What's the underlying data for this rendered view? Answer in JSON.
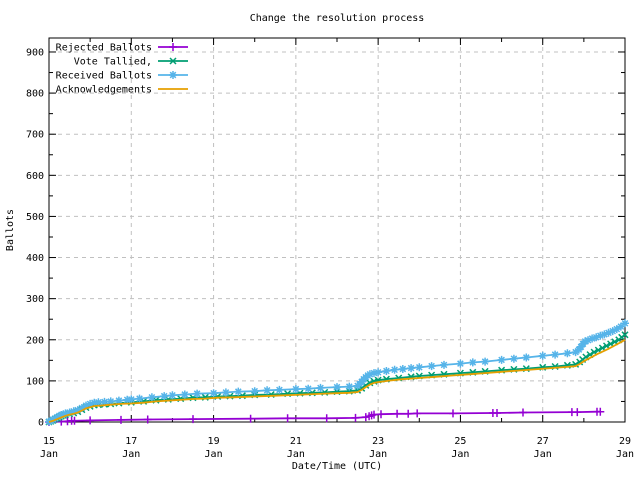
{
  "title": "Change the resolution process",
  "axes": {
    "xlabel": "Date/Time (UTC)",
    "ylabel": "Ballots",
    "x_major_ticks": [
      {
        "day": 15,
        "label_top": "15",
        "label_bottom": "Jan"
      },
      {
        "day": 17,
        "label_top": "17",
        "label_bottom": "Jan"
      },
      {
        "day": 19,
        "label_top": "19",
        "label_bottom": "Jan"
      },
      {
        "day": 21,
        "label_top": "21",
        "label_bottom": "Jan"
      },
      {
        "day": 23,
        "label_top": "23",
        "label_bottom": "Jan"
      },
      {
        "day": 25,
        "label_top": "25",
        "label_bottom": "Jan"
      },
      {
        "day": 27,
        "label_top": "27",
        "label_bottom": "Jan"
      },
      {
        "day": 29,
        "label_top": "29",
        "label_bottom": "Jan"
      }
    ],
    "x_minor_days": [
      16,
      18,
      20,
      22,
      24,
      26,
      28
    ],
    "x_grid_days": [
      17,
      19,
      21,
      23,
      25,
      27
    ],
    "y_major_ticks": [
      0,
      100,
      200,
      300,
      400,
      500,
      600,
      700,
      800,
      900
    ],
    "y_minor_ticks": [
      50,
      150,
      250,
      350,
      450,
      550,
      650,
      750,
      850
    ]
  },
  "colors": {
    "background": "#ffffff",
    "axis": "#000000",
    "grid": "#c0c0c0",
    "rejected": "#9400d3",
    "tallied": "#009e73",
    "received": "#56b4e9",
    "acknowledgements": "#e69f00"
  },
  "chart_data": {
    "type": "line",
    "title": "Change the resolution process",
    "xlabel": "Date/Time (UTC)",
    "ylabel": "Ballots",
    "x_unit": "day of January (UTC)",
    "xlim": [
      15,
      29
    ],
    "ylim": [
      0,
      934
    ],
    "grid": true,
    "legend_position": "top-left",
    "series": [
      {
        "name": "Rejected Ballots",
        "color": "#9400d3",
        "marker": "plus",
        "points": [
          [
            15.0,
            0
          ],
          [
            15.3,
            1
          ],
          [
            15.45,
            2
          ],
          [
            15.55,
            3
          ],
          [
            15.62,
            3
          ],
          [
            16.0,
            4
          ],
          [
            16.75,
            5
          ],
          [
            17.4,
            6
          ],
          [
            18.5,
            7
          ],
          [
            19.9,
            8
          ],
          [
            20.8,
            9
          ],
          [
            21.75,
            9
          ],
          [
            22.45,
            10
          ],
          [
            22.7,
            12
          ],
          [
            22.78,
            14
          ],
          [
            22.84,
            16
          ],
          [
            22.9,
            18
          ],
          [
            23.07,
            19
          ],
          [
            23.46,
            20
          ],
          [
            23.73,
            20
          ],
          [
            23.95,
            21
          ],
          [
            24.82,
            21
          ],
          [
            25.79,
            22
          ],
          [
            25.89,
            22
          ],
          [
            26.52,
            23
          ],
          [
            27.71,
            24
          ],
          [
            27.84,
            24
          ],
          [
            28.32,
            25
          ],
          [
            28.4,
            25
          ]
        ]
      },
      {
        "name": "Vote Tallied,",
        "color": "#009e73",
        "marker": "cross",
        "points": [
          [
            15.0,
            0
          ],
          [
            15.05,
            2
          ],
          [
            15.1,
            4
          ],
          [
            15.15,
            7
          ],
          [
            15.2,
            9
          ],
          [
            15.25,
            12
          ],
          [
            15.3,
            14
          ],
          [
            15.35,
            16
          ],
          [
            15.4,
            18
          ],
          [
            15.5,
            20
          ],
          [
            15.6,
            22
          ],
          [
            15.7,
            25
          ],
          [
            15.8,
            30
          ],
          [
            15.9,
            35
          ],
          [
            16.0,
            38
          ],
          [
            16.1,
            41
          ],
          [
            16.2,
            42
          ],
          [
            16.35,
            43
          ],
          [
            16.5,
            44
          ],
          [
            16.7,
            46
          ],
          [
            17.0,
            48
          ],
          [
            17.3,
            50
          ],
          [
            17.6,
            53
          ],
          [
            17.9,
            55
          ],
          [
            18.2,
            57
          ],
          [
            18.5,
            59
          ],
          [
            18.8,
            60
          ],
          [
            19.1,
            62
          ],
          [
            19.4,
            63
          ],
          [
            19.7,
            64
          ],
          [
            20.0,
            66
          ],
          [
            20.4,
            67
          ],
          [
            20.8,
            69
          ],
          [
            21.1,
            70
          ],
          [
            21.4,
            71
          ],
          [
            21.7,
            72
          ],
          [
            22.0,
            74
          ],
          [
            22.3,
            75
          ],
          [
            22.5,
            77
          ],
          [
            22.6,
            82
          ],
          [
            22.7,
            89
          ],
          [
            22.8,
            95
          ],
          [
            22.9,
            99
          ],
          [
            23.0,
            102
          ],
          [
            23.2,
            104
          ],
          [
            23.5,
            107
          ],
          [
            23.8,
            110
          ],
          [
            24.0,
            112
          ],
          [
            24.3,
            114
          ],
          [
            24.6,
            116
          ],
          [
            25.0,
            119
          ],
          [
            25.3,
            121
          ],
          [
            25.6,
            123
          ],
          [
            26.0,
            126
          ],
          [
            26.3,
            128
          ],
          [
            26.6,
            130
          ],
          [
            27.0,
            133
          ],
          [
            27.3,
            135
          ],
          [
            27.6,
            138
          ],
          [
            27.8,
            140
          ],
          [
            27.9,
            146
          ],
          [
            27.97,
            152
          ],
          [
            28.05,
            158
          ],
          [
            28.15,
            164
          ],
          [
            28.25,
            170
          ],
          [
            28.35,
            175
          ],
          [
            28.45,
            180
          ],
          [
            28.55,
            185
          ],
          [
            28.65,
            190
          ],
          [
            28.75,
            195
          ],
          [
            28.85,
            200
          ],
          [
            28.92,
            206
          ],
          [
            29.0,
            212
          ]
        ]
      },
      {
        "name": "Received Ballots",
        "color": "#56b4e9",
        "marker": "star",
        "points": [
          [
            15.0,
            1
          ],
          [
            15.05,
            3
          ],
          [
            15.1,
            6
          ],
          [
            15.15,
            9
          ],
          [
            15.2,
            12
          ],
          [
            15.25,
            15
          ],
          [
            15.3,
            17
          ],
          [
            15.35,
            19
          ],
          [
            15.4,
            21
          ],
          [
            15.5,
            23
          ],
          [
            15.6,
            26
          ],
          [
            15.7,
            29
          ],
          [
            15.8,
            34
          ],
          [
            15.9,
            40
          ],
          [
            16.0,
            44
          ],
          [
            16.1,
            47
          ],
          [
            16.2,
            48
          ],
          [
            16.35,
            49
          ],
          [
            16.5,
            50
          ],
          [
            16.7,
            52
          ],
          [
            16.9,
            54
          ],
          [
            17.0,
            55
          ],
          [
            17.2,
            57
          ],
          [
            17.5,
            60
          ],
          [
            17.8,
            63
          ],
          [
            18.0,
            65
          ],
          [
            18.3,
            67
          ],
          [
            18.6,
            69
          ],
          [
            19.0,
            70
          ],
          [
            19.3,
            72
          ],
          [
            19.6,
            74
          ],
          [
            20.0,
            75
          ],
          [
            20.3,
            77
          ],
          [
            20.6,
            78
          ],
          [
            21.0,
            80
          ],
          [
            21.3,
            81
          ],
          [
            21.6,
            83
          ],
          [
            22.0,
            85
          ],
          [
            22.3,
            86
          ],
          [
            22.5,
            88
          ],
          [
            22.55,
            92
          ],
          [
            22.6,
            98
          ],
          [
            22.65,
            104
          ],
          [
            22.7,
            109
          ],
          [
            22.75,
            113
          ],
          [
            22.8,
            116
          ],
          [
            22.9,
            119
          ],
          [
            23.0,
            121
          ],
          [
            23.2,
            124
          ],
          [
            23.4,
            127
          ],
          [
            23.6,
            129
          ],
          [
            23.8,
            131
          ],
          [
            24.0,
            133
          ],
          [
            24.3,
            136
          ],
          [
            24.6,
            139
          ],
          [
            25.0,
            142
          ],
          [
            25.3,
            145
          ],
          [
            25.6,
            147
          ],
          [
            26.0,
            151
          ],
          [
            26.3,
            154
          ],
          [
            26.6,
            157
          ],
          [
            27.0,
            161
          ],
          [
            27.3,
            164
          ],
          [
            27.6,
            167
          ],
          [
            27.8,
            170
          ],
          [
            27.88,
            176
          ],
          [
            27.93,
            183
          ],
          [
            27.98,
            190
          ],
          [
            28.03,
            196
          ],
          [
            28.1,
            199
          ],
          [
            28.2,
            203
          ],
          [
            28.3,
            206
          ],
          [
            28.4,
            210
          ],
          [
            28.5,
            213
          ],
          [
            28.6,
            217
          ],
          [
            28.7,
            221
          ],
          [
            28.8,
            226
          ],
          [
            28.9,
            232
          ],
          [
            29.0,
            240
          ]
        ]
      },
      {
        "name": "Acknowledgements",
        "color": "#e69f00",
        "marker": "none",
        "points": [
          [
            15.0,
            0
          ],
          [
            15.1,
            3
          ],
          [
            15.2,
            7
          ],
          [
            15.3,
            11
          ],
          [
            15.4,
            15
          ],
          [
            15.5,
            18
          ],
          [
            15.6,
            20
          ],
          [
            15.7,
            23
          ],
          [
            15.8,
            28
          ],
          [
            15.9,
            33
          ],
          [
            16.0,
            36
          ],
          [
            16.1,
            39
          ],
          [
            16.25,
            40
          ],
          [
            16.5,
            42
          ],
          [
            16.75,
            44
          ],
          [
            17.0,
            45
          ],
          [
            17.3,
            47
          ],
          [
            17.6,
            50
          ],
          [
            17.9,
            52
          ],
          [
            18.2,
            54
          ],
          [
            18.5,
            56
          ],
          [
            18.8,
            57
          ],
          [
            19.1,
            59
          ],
          [
            19.5,
            60
          ],
          [
            20.0,
            62
          ],
          [
            20.5,
            64
          ],
          [
            21.0,
            66
          ],
          [
            21.5,
            68
          ],
          [
            22.0,
            70
          ],
          [
            22.3,
            71
          ],
          [
            22.5,
            73
          ],
          [
            22.6,
            78
          ],
          [
            22.7,
            85
          ],
          [
            22.8,
            91
          ],
          [
            22.9,
            95
          ],
          [
            23.0,
            97
          ],
          [
            23.3,
            101
          ],
          [
            23.6,
            104
          ],
          [
            24.0,
            107
          ],
          [
            24.4,
            110
          ],
          [
            24.8,
            113
          ],
          [
            25.2,
            116
          ],
          [
            25.6,
            119
          ],
          [
            26.0,
            122
          ],
          [
            26.4,
            125
          ],
          [
            26.8,
            128
          ],
          [
            27.2,
            131
          ],
          [
            27.6,
            134
          ],
          [
            27.8,
            136
          ],
          [
            27.9,
            141
          ],
          [
            28.0,
            148
          ],
          [
            28.15,
            156
          ],
          [
            28.3,
            164
          ],
          [
            28.45,
            171
          ],
          [
            28.6,
            178
          ],
          [
            28.75,
            186
          ],
          [
            28.9,
            194
          ],
          [
            29.0,
            200
          ]
        ]
      }
    ]
  }
}
